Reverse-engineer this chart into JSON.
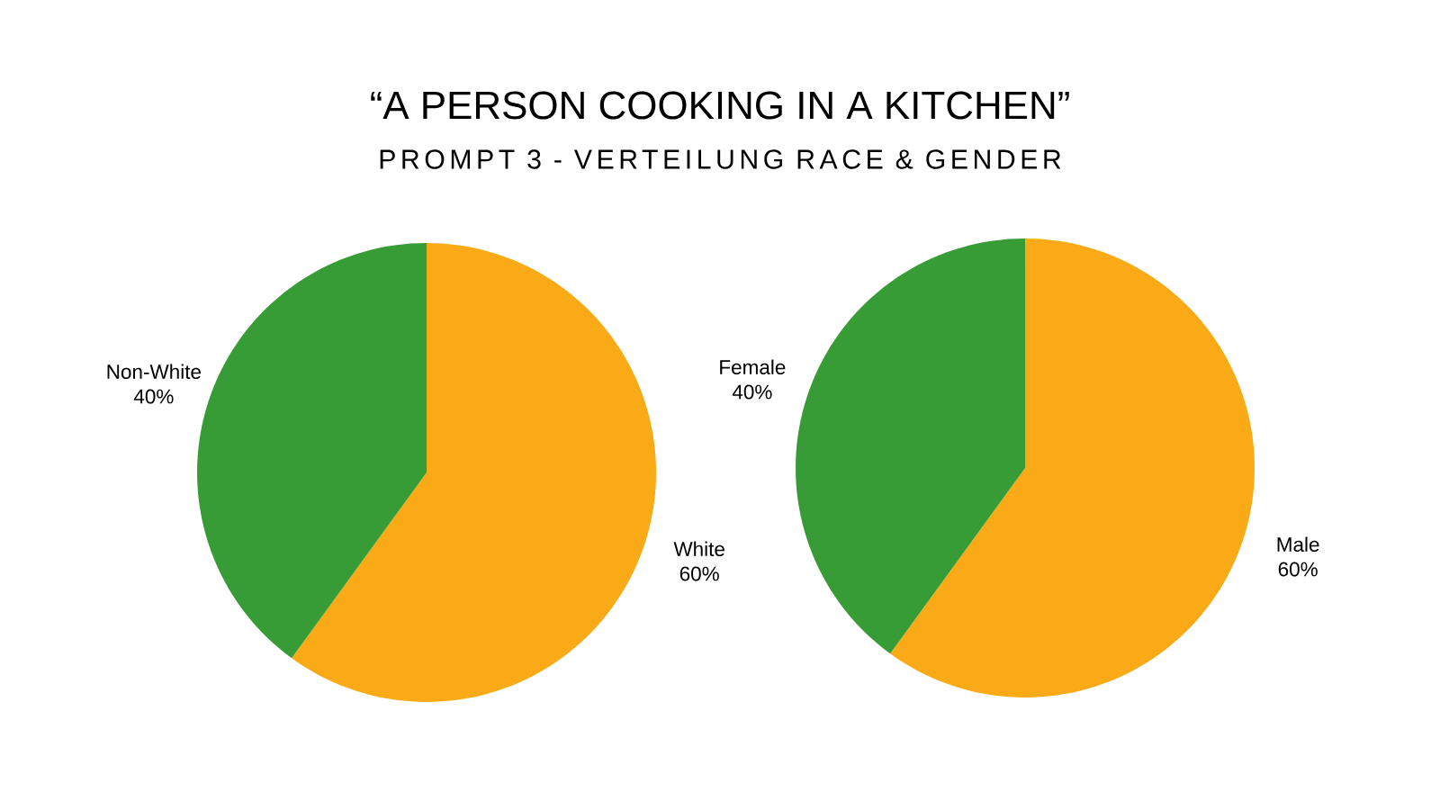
{
  "chart_data": [
    {
      "type": "pie",
      "title": "“A PERSON COOKING IN A KITCHEN”",
      "subtitle": "PROMPT 3 - VERTEILUNG RACE & GENDER",
      "categories": [
        "White",
        "Non-White"
      ],
      "values": [
        60,
        40
      ],
      "colors": [
        "#f9aa16",
        "#389c36"
      ],
      "value_labels": [
        "60%",
        "40%"
      ]
    },
    {
      "type": "pie",
      "categories": [
        "Male",
        "Female"
      ],
      "values": [
        60,
        40
      ],
      "colors": [
        "#f9aa16",
        "#389c36"
      ],
      "value_labels": [
        "60%",
        "40%"
      ]
    }
  ]
}
